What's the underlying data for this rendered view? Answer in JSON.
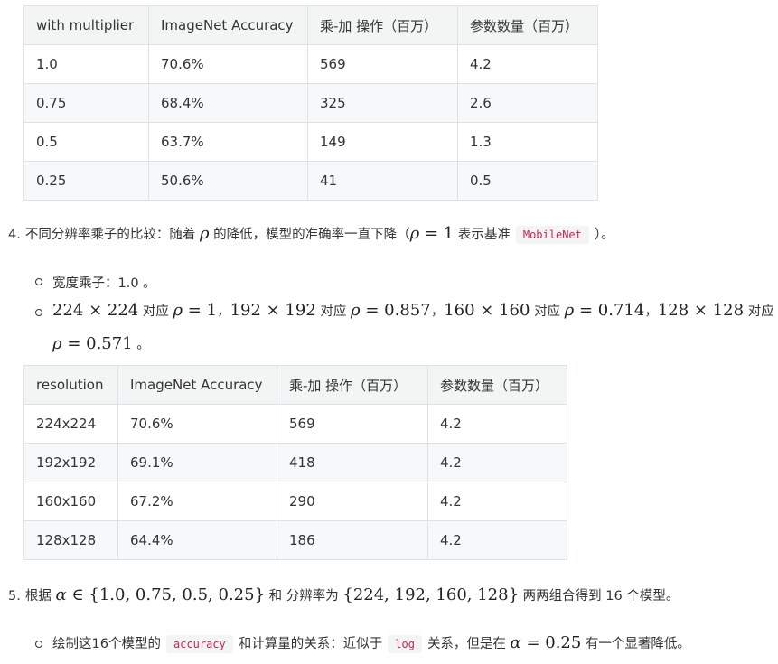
{
  "table_multiplier": {
    "headers": [
      "with multiplier",
      "ImageNet Accuracy",
      "乘-加 操作（百万）",
      "参数数量（百万）"
    ],
    "rows": [
      [
        "1.0",
        "70.6%",
        "569",
        "4.2"
      ],
      [
        "0.75",
        "68.4%",
        "325",
        "2.6"
      ],
      [
        "0.5",
        "63.7%",
        "149",
        "1.3"
      ],
      [
        "0.25",
        "50.6%",
        "41",
        "0.5"
      ]
    ]
  },
  "item4": {
    "number": "4.",
    "text_a": "不同分辨率乘子的比较：随着",
    "rho": "ρ",
    "text_b": "的降低，模型的准确率一直下降（",
    "eq": "= 1",
    "text_c": "表示基准",
    "code": "MobileNet",
    "text_d": "）。"
  },
  "bullet_width": {
    "text": "宽度乘子：1.0 。"
  },
  "bullet_res": {
    "m1": "224 × 224",
    "t1": "对应",
    "eq1": "= 1",
    "sep1": "，",
    "m2": "192 × 192",
    "t2": "对应",
    "eq2": "= 0.857",
    "sep2": "，",
    "m3": "160 × 160",
    "t3": "对应",
    "eq3": "= 0.714",
    "sep3": "，",
    "m4": "128 × 128",
    "t4": "对应",
    "eq4": "= 0.571",
    "end": "。"
  },
  "table_resolution": {
    "headers": [
      "resolution",
      "ImageNet Accuracy",
      "乘-加 操作（百万）",
      "参数数量（百万）"
    ],
    "rows": [
      [
        "224x224",
        "70.6%",
        "569",
        "4.2"
      ],
      [
        "192x192",
        "69.1%",
        "418",
        "4.2"
      ],
      [
        "160x160",
        "67.2%",
        "290",
        "4.2"
      ],
      [
        "128x128",
        "64.4%",
        "186",
        "4.2"
      ]
    ]
  },
  "item5": {
    "number": "5.",
    "text_a": "根据",
    "alpha": "α",
    "set1": "∈ {1.0, 0.75, 0.5, 0.25}",
    "text_b": "和 分辨率为",
    "set2": "{224, 192, 160, 128}",
    "text_c": "两两组合得到 16 个模型。"
  },
  "bullet_plot": {
    "text_a": "绘制这16个模型的",
    "code1": "accuracy",
    "text_b": "和计算量的关系：近似于",
    "code2": "log",
    "text_c": "关系，但是在",
    "alpha": "α",
    "eq": "= 0.25",
    "text_d": "有一个显著降低。"
  }
}
